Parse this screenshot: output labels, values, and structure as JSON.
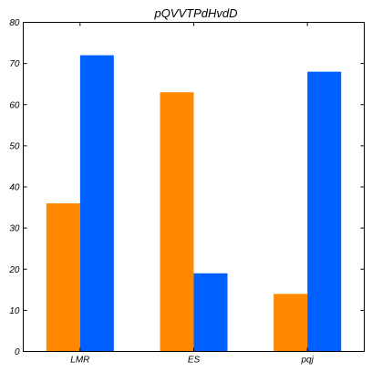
{
  "chart_data": {
    "type": "bar",
    "title": "pQVVTPdHvdD",
    "xlabel": "",
    "ylabel": "",
    "categories": [
      "LMR",
      "ES",
      "pqj"
    ],
    "series": [
      {
        "values": [
          36,
          63,
          14
        ],
        "color": "#ff8800"
      },
      {
        "values": [
          72,
          19,
          68
        ],
        "color": "#0060ff"
      }
    ],
    "ylim": [
      0,
      80
    ],
    "yticks": [
      0,
      10,
      20,
      30,
      40,
      50,
      60,
      70,
      80
    ],
    "grid": false,
    "legend": "none"
  }
}
